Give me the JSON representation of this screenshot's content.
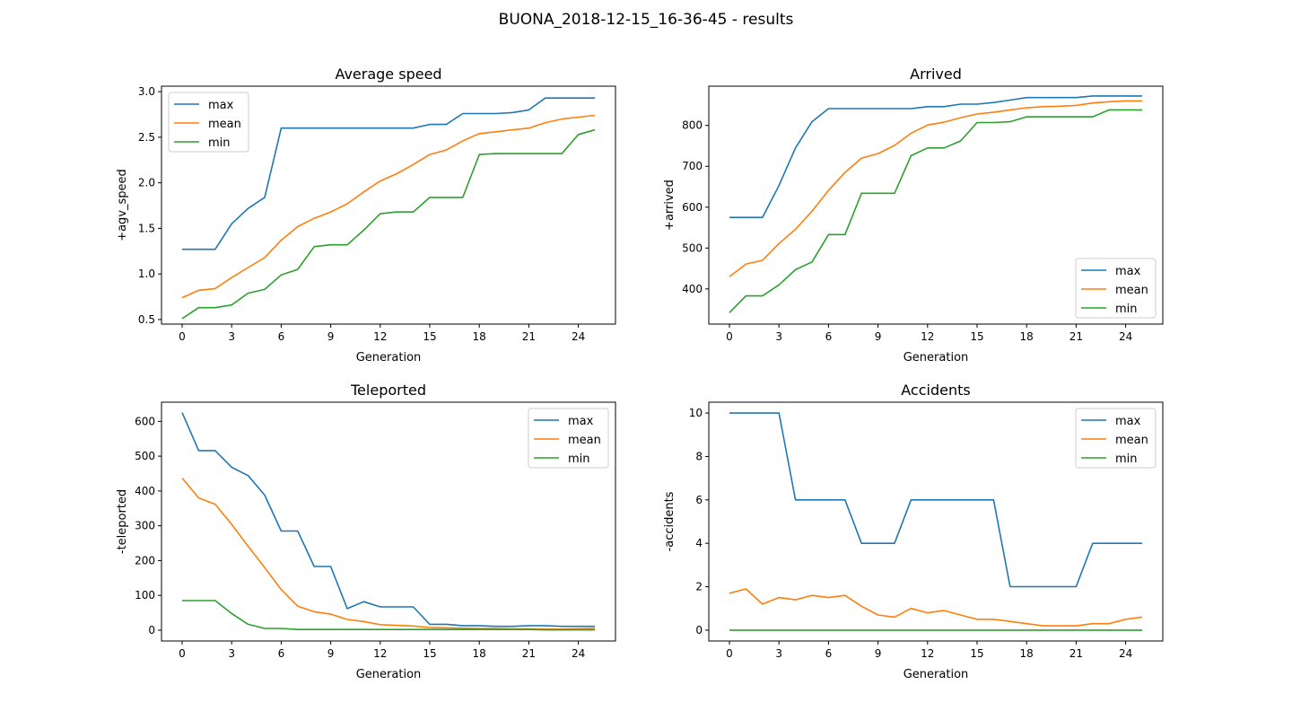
{
  "suptitle": "BUONA_2018-12-15_16-36-45 - results",
  "colors": {
    "max": "#1f77b4",
    "mean": "#ff7f0e",
    "min": "#2ca02c"
  },
  "chart_data": [
    {
      "type": "line",
      "title": "Average speed",
      "xlabel": "Generation",
      "ylabel": "+agv_speed",
      "xlim": [
        -1.25,
        26.25
      ],
      "ylim": [
        0.45,
        3.06
      ],
      "xticks": [
        0,
        3,
        6,
        9,
        12,
        15,
        18,
        21,
        24
      ],
      "yticks": [
        0.5,
        1.0,
        1.5,
        2.0,
        2.5,
        3.0
      ],
      "ytick_labels": [
        "0.5",
        "1.0",
        "1.5",
        "2.0",
        "2.5",
        "3.0"
      ],
      "legend": "upper left",
      "x": [
        0,
        1,
        2,
        3,
        4,
        5,
        6,
        7,
        8,
        9,
        10,
        11,
        12,
        13,
        14,
        15,
        16,
        17,
        18,
        19,
        20,
        21,
        22,
        23,
        24,
        25
      ],
      "series": [
        {
          "name": "max",
          "values": [
            1.27,
            1.27,
            1.27,
            1.55,
            1.72,
            1.84,
            2.6,
            2.6,
            2.6,
            2.6,
            2.6,
            2.6,
            2.6,
            2.6,
            2.6,
            2.64,
            2.64,
            2.76,
            2.76,
            2.76,
            2.77,
            2.8,
            2.93,
            2.93,
            2.93,
            2.93
          ]
        },
        {
          "name": "mean",
          "values": [
            0.74,
            0.82,
            0.84,
            0.96,
            1.07,
            1.18,
            1.37,
            1.52,
            1.61,
            1.68,
            1.77,
            1.9,
            2.02,
            2.1,
            2.2,
            2.31,
            2.36,
            2.46,
            2.54,
            2.56,
            2.58,
            2.6,
            2.66,
            2.7,
            2.72,
            2.74
          ]
        },
        {
          "name": "min",
          "values": [
            0.51,
            0.63,
            0.63,
            0.66,
            0.79,
            0.83,
            0.99,
            1.05,
            1.3,
            1.32,
            1.32,
            1.48,
            1.66,
            1.68,
            1.68,
            1.84,
            1.84,
            1.84,
            2.31,
            2.32,
            2.32,
            2.32,
            2.32,
            2.32,
            2.53,
            2.58
          ]
        }
      ]
    },
    {
      "type": "line",
      "title": "Arrived",
      "xlabel": "Generation",
      "ylabel": "+arrived",
      "xlim": [
        -1.25,
        26.25
      ],
      "ylim": [
        314,
        896
      ],
      "xticks": [
        0,
        3,
        6,
        9,
        12,
        15,
        18,
        21,
        24
      ],
      "yticks": [
        400,
        500,
        600,
        700,
        800
      ],
      "ytick_labels": [
        "400",
        "500",
        "600",
        "700",
        "800"
      ],
      "legend": "lower right",
      "x": [
        0,
        1,
        2,
        3,
        4,
        5,
        6,
        7,
        8,
        9,
        10,
        11,
        12,
        13,
        14,
        15,
        16,
        17,
        18,
        19,
        20,
        21,
        22,
        23,
        24,
        25
      ],
      "series": [
        {
          "name": "max",
          "values": [
            575,
            575,
            575,
            653,
            745,
            809,
            841,
            841,
            841,
            841,
            841,
            841,
            846,
            846,
            852,
            852,
            856,
            862,
            868,
            868,
            868,
            868,
            872,
            872,
            872,
            872
          ]
        },
        {
          "name": "mean",
          "values": [
            430,
            461,
            470,
            511,
            546,
            590,
            641,
            685,
            720,
            731,
            751,
            781,
            801,
            808,
            819,
            828,
            832,
            838,
            843,
            846,
            847,
            849,
            855,
            858,
            860,
            860
          ]
        },
        {
          "name": "min",
          "values": [
            342,
            383,
            383,
            410,
            447,
            466,
            533,
            533,
            634,
            634,
            634,
            726,
            745,
            745,
            762,
            807,
            807,
            809,
            821,
            821,
            821,
            821,
            821,
            838,
            838,
            838
          ]
        }
      ]
    },
    {
      "type": "line",
      "title": "Teleported",
      "xlabel": "Generation",
      "ylabel": "-teleported",
      "xlim": [
        -1.25,
        26.25
      ],
      "ylim": [
        -31,
        655
      ],
      "xticks": [
        0,
        3,
        6,
        9,
        12,
        15,
        18,
        21,
        24
      ],
      "yticks": [
        0,
        100,
        200,
        300,
        400,
        500,
        600
      ],
      "ytick_labels": [
        "0",
        "100",
        "200",
        "300",
        "400",
        "500",
        "600"
      ],
      "legend": "upper right",
      "x": [
        0,
        1,
        2,
        3,
        4,
        5,
        6,
        7,
        8,
        9,
        10,
        11,
        12,
        13,
        14,
        15,
        16,
        17,
        18,
        19,
        20,
        21,
        22,
        23,
        24,
        25
      ],
      "series": [
        {
          "name": "max",
          "values": [
            625,
            516,
            516,
            468,
            444,
            388,
            285,
            285,
            183,
            183,
            62,
            82,
            67,
            67,
            67,
            17,
            17,
            13,
            13,
            11,
            11,
            13,
            13,
            11,
            11,
            11
          ]
        },
        {
          "name": "mean",
          "values": [
            437,
            380,
            362,
            304,
            241,
            180,
            117,
            69,
            53,
            46,
            31,
            25,
            16,
            14,
            12,
            8,
            7,
            6,
            5,
            5,
            4,
            4,
            3,
            3,
            4,
            5
          ]
        },
        {
          "name": "min",
          "values": [
            85,
            85,
            85,
            48,
            17,
            5,
            5,
            2,
            2,
            2,
            2,
            2,
            2,
            2,
            2,
            2,
            2,
            2,
            2,
            2,
            2,
            2,
            1,
            1,
            1,
            1
          ]
        }
      ]
    },
    {
      "type": "line",
      "title": "Accidents",
      "xlabel": "Generation",
      "ylabel": "-accidents",
      "xlim": [
        -1.25,
        26.25
      ],
      "ylim": [
        -0.5,
        10.5
      ],
      "xticks": [
        0,
        3,
        6,
        9,
        12,
        15,
        18,
        21,
        24
      ],
      "yticks": [
        0,
        2,
        4,
        6,
        8,
        10
      ],
      "ytick_labels": [
        "0",
        "2",
        "4",
        "6",
        "8",
        "10"
      ],
      "legend": "upper right",
      "x": [
        0,
        1,
        2,
        3,
        4,
        5,
        6,
        7,
        8,
        9,
        10,
        11,
        12,
        13,
        14,
        15,
        16,
        17,
        18,
        19,
        20,
        21,
        22,
        23,
        24,
        25
      ],
      "series": [
        {
          "name": "max",
          "values": [
            10,
            10,
            10,
            10,
            6,
            6,
            6,
            6,
            4,
            4,
            4,
            6,
            6,
            6,
            6,
            6,
            6,
            2,
            2,
            2,
            2,
            2,
            4,
            4,
            4,
            4
          ]
        },
        {
          "name": "mean",
          "values": [
            1.7,
            1.9,
            1.2,
            1.5,
            1.4,
            1.6,
            1.5,
            1.6,
            1.1,
            0.7,
            0.6,
            1.0,
            0.8,
            0.9,
            0.7,
            0.5,
            0.5,
            0.4,
            0.3,
            0.2,
            0.2,
            0.2,
            0.3,
            0.3,
            0.5,
            0.6
          ]
        },
        {
          "name": "min",
          "values": [
            0,
            0,
            0,
            0,
            0,
            0,
            0,
            0,
            0,
            0,
            0,
            0,
            0,
            0,
            0,
            0,
            0,
            0,
            0,
            0,
            0,
            0,
            0,
            0,
            0,
            0
          ]
        }
      ]
    }
  ]
}
